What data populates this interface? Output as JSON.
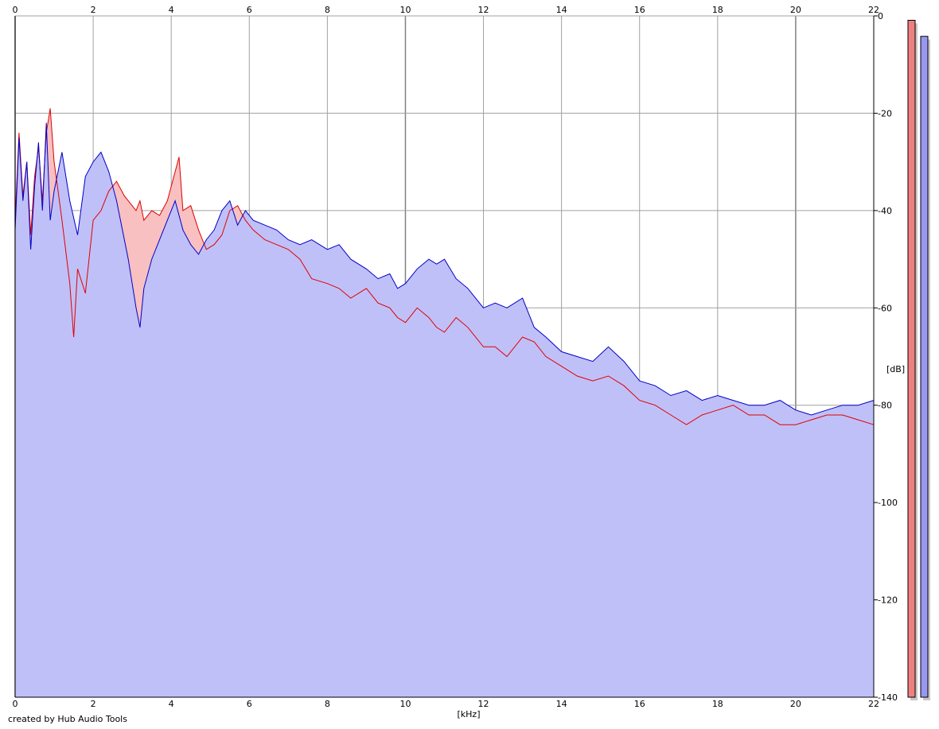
{
  "footer": {
    "credit": "created by Hub Audio Tools"
  },
  "colors": {
    "background": "#ffffff",
    "grid": "#a0a0a0",
    "grid_major": "#808080",
    "right_channel_line": "#0000c8",
    "right_channel_fill": "#c0c0f8",
    "left_channel_line": "#e00000",
    "left_channel_fill": "#f8c0c0",
    "left_meter": "#f08080",
    "right_meter": "#9898f0",
    "meter_shadow": "#c8c8c8"
  },
  "chart_data": {
    "type": "area",
    "xlabel": "[kHz]",
    "ylabel": "[dB]",
    "xlim": [
      0,
      22
    ],
    "ylim": [
      -140,
      0
    ],
    "x_ticks": [
      0,
      2,
      4,
      6,
      8,
      10,
      12,
      14,
      16,
      18,
      20,
      22
    ],
    "y_ticks": [
      0,
      -20,
      -40,
      -60,
      -80,
      -100,
      -120,
      -140
    ],
    "x_tick_labels": [
      "0",
      "2",
      "4",
      "6",
      "8",
      "10",
      "12",
      "14",
      "16",
      "18",
      "20",
      "22"
    ],
    "y_tick_labels": [
      "0",
      "-20",
      "-40",
      "-60",
      "-80",
      "-100",
      "-120",
      "-140"
    ],
    "grid": true,
    "series": [
      {
        "color": "#0000c8",
        "x": [
          0,
          0.1,
          0.2,
          0.3,
          0.4,
          0.5,
          0.6,
          0.7,
          0.8,
          0.9,
          1.0,
          1.2,
          1.4,
          1.6,
          1.8,
          2.0,
          2.2,
          2.4,
          2.6,
          2.8,
          2.9,
          3.0,
          3.1,
          3.2,
          3.3,
          3.5,
          3.7,
          3.9,
          4.1,
          4.3,
          4.5,
          4.7,
          4.9,
          5.1,
          5.3,
          5.5,
          5.7,
          5.9,
          6.1,
          6.4,
          6.7,
          7.0,
          7.3,
          7.6,
          8.0,
          8.3,
          8.6,
          9.0,
          9.3,
          9.6,
          9.8,
          10.0,
          10.3,
          10.6,
          10.8,
          11.0,
          11.3,
          11.6,
          12.0,
          12.3,
          12.6,
          13.0,
          13.3,
          13.6,
          14.0,
          14.4,
          14.8,
          15.2,
          15.6,
          16.0,
          16.4,
          16.8,
          17.2,
          17.6,
          18.0,
          18.4,
          18.8,
          19.2,
          19.6,
          20.0,
          20.4,
          20.8,
          21.2,
          21.6,
          22.0
        ],
        "values": [
          -44,
          -25,
          -38,
          -30,
          -48,
          -35,
          -26,
          -40,
          -22,
          -42,
          -36,
          -28,
          -38,
          -45,
          -33,
          -30,
          -28,
          -32,
          -38,
          -46,
          -50,
          -55,
          -60,
          -64,
          -56,
          -50,
          -46,
          -42,
          -38,
          -44,
          -47,
          -49,
          -46,
          -44,
          -40,
          -38,
          -43,
          -40,
          -42,
          -43,
          -44,
          -46,
          -47,
          -46,
          -48,
          -47,
          -50,
          -52,
          -54,
          -53,
          -56,
          -55,
          -52,
          -50,
          -51,
          -50,
          -54,
          -56,
          -60,
          -59,
          -60,
          -58,
          -64,
          -66,
          -69,
          -70,
          -71,
          -68,
          -71,
          -75,
          -76,
          -78,
          -77,
          -79,
          -78,
          -79,
          -80,
          -80,
          -79,
          -81,
          -82,
          -81,
          -80,
          -80,
          -79
        ]
      },
      {
        "color": "#e00000",
        "x": [
          0,
          0.1,
          0.2,
          0.3,
          0.4,
          0.5,
          0.6,
          0.7,
          0.8,
          0.9,
          1.0,
          1.1,
          1.2,
          1.4,
          1.5,
          1.6,
          1.8,
          2.0,
          2.2,
          2.4,
          2.6,
          2.8,
          3.0,
          3.1,
          3.2,
          3.3,
          3.5,
          3.7,
          3.9,
          4.1,
          4.2,
          4.3,
          4.5,
          4.7,
          4.9,
          5.1,
          5.3,
          5.5,
          5.7,
          5.9,
          6.1,
          6.4,
          6.7,
          7.0,
          7.3,
          7.6,
          8.0,
          8.3,
          8.6,
          9.0,
          9.3,
          9.6,
          9.8,
          10.0,
          10.3,
          10.6,
          10.8,
          11.0,
          11.3,
          11.6,
          12.0,
          12.3,
          12.6,
          13.0,
          13.3,
          13.6,
          14.0,
          14.4,
          14.8,
          15.2,
          15.6,
          16.0,
          16.4,
          16.8,
          17.2,
          17.6,
          18.0,
          18.4,
          18.8,
          19.2,
          19.6,
          20.0,
          20.4,
          20.8,
          21.2,
          21.6,
          22.0
        ],
        "values": [
          -42,
          -24,
          -37,
          -30,
          -45,
          -33,
          -27,
          -38,
          -24,
          -19,
          -30,
          -36,
          -42,
          -55,
          -66,
          -52,
          -57,
          -42,
          -40,
          -36,
          -34,
          -37,
          -39,
          -40,
          -38,
          -42,
          -40,
          -41,
          -38,
          -32,
          -29,
          -40,
          -39,
          -44,
          -48,
          -47,
          -45,
          -40,
          -39,
          -42,
          -44,
          -46,
          -47,
          -48,
          -50,
          -54,
          -55,
          -56,
          -58,
          -56,
          -59,
          -60,
          -62,
          -63,
          -60,
          -62,
          -64,
          -65,
          -62,
          -64,
          -68,
          -68,
          -70,
          -66,
          -67,
          -70,
          -72,
          -74,
          -75,
          -74,
          -76,
          -79,
          -80,
          -82,
          -84,
          -82,
          -81,
          -80,
          -82,
          -82,
          -84,
          -84,
          -83,
          -82,
          -82,
          -83,
          -84
        ]
      }
    ],
    "meters": [
      {
        "channel": "left",
        "value": -0.9,
        "color": "#f08080"
      },
      {
        "channel": "right",
        "value": -4.2,
        "color": "#9898f0"
      }
    ]
  }
}
